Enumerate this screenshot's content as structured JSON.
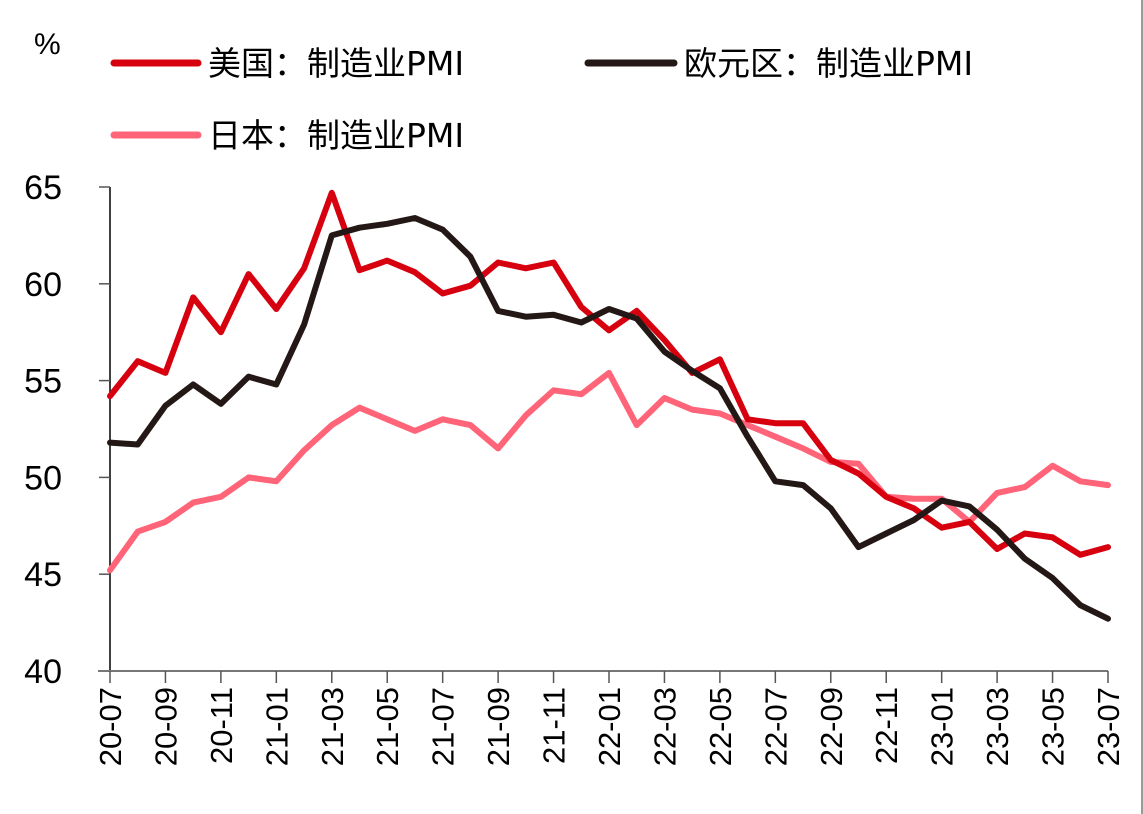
{
  "chart_data": {
    "type": "line",
    "title": "",
    "unit_label": "%",
    "xlabel": "",
    "ylabel": "%",
    "ylim": [
      40,
      65
    ],
    "yticks": [
      40,
      45,
      50,
      55,
      60,
      65
    ],
    "grid": false,
    "legend_placement": "top-left",
    "x": [
      "20-07",
      "20-08",
      "20-09",
      "20-10",
      "20-11",
      "20-12",
      "21-01",
      "21-02",
      "21-03",
      "21-04",
      "21-05",
      "21-06",
      "21-07",
      "21-08",
      "21-09",
      "21-10",
      "21-11",
      "21-12",
      "22-01",
      "22-02",
      "22-03",
      "22-04",
      "22-05",
      "22-06",
      "22-07",
      "22-08",
      "22-09",
      "22-10",
      "22-11",
      "22-12",
      "23-01",
      "23-02",
      "23-03",
      "23-04",
      "23-05",
      "23-06",
      "23-07"
    ],
    "xtick_labels": [
      "20-07",
      "20-09",
      "20-11",
      "21-01",
      "21-03",
      "21-05",
      "21-07",
      "21-09",
      "21-11",
      "22-01",
      "22-03",
      "22-05",
      "22-07",
      "22-09",
      "22-11",
      "23-01",
      "23-03",
      "23-05",
      "23-07"
    ],
    "series": [
      {
        "name": "美国：制造业PMI",
        "color": "#D7000F",
        "values": [
          54.2,
          56.0,
          55.4,
          59.3,
          57.5,
          60.5,
          58.7,
          60.8,
          64.7,
          60.7,
          61.2,
          60.6,
          59.5,
          59.9,
          61.1,
          60.8,
          61.1,
          58.8,
          57.6,
          58.6,
          57.1,
          55.4,
          56.1,
          53.0,
          52.8,
          52.8,
          50.9,
          50.2,
          49.0,
          48.4,
          47.4,
          47.7,
          46.3,
          47.1,
          46.9,
          46.0,
          46.4
        ]
      },
      {
        "name": "欧元区：制造业PMI",
        "color": "#231815",
        "values": [
          51.8,
          51.7,
          53.7,
          54.8,
          53.8,
          55.2,
          54.8,
          57.9,
          62.5,
          62.9,
          63.1,
          63.4,
          62.8,
          61.4,
          58.6,
          58.3,
          58.4,
          58.0,
          58.7,
          58.2,
          56.5,
          55.5,
          54.6,
          52.1,
          49.8,
          49.6,
          48.4,
          46.4,
          47.1,
          47.8,
          48.8,
          48.5,
          47.3,
          45.8,
          44.8,
          43.4,
          42.7
        ]
      },
      {
        "name": "日本：制造业PMI",
        "color": "#FF6478",
        "values": [
          45.2,
          47.2,
          47.7,
          48.7,
          49.0,
          50.0,
          49.8,
          51.4,
          52.7,
          53.6,
          53.0,
          52.4,
          53.0,
          52.7,
          51.5,
          53.2,
          54.5,
          54.3,
          55.4,
          52.7,
          54.1,
          53.5,
          53.3,
          52.7,
          52.1,
          51.5,
          50.8,
          50.7,
          49.0,
          48.9,
          48.9,
          47.7,
          49.2,
          49.5,
          50.6,
          49.8,
          49.6
        ]
      }
    ]
  }
}
